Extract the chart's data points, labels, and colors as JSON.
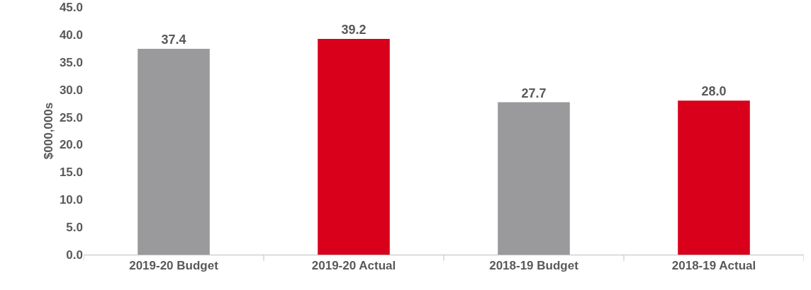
{
  "chart_data": {
    "type": "bar",
    "ylabel": "$000,000s",
    "categories": [
      "2019-20 Budget",
      "2019-20 Actual",
      "2018-19 Budget",
      "2018-19 Actual"
    ],
    "values": [
      37.4,
      39.2,
      27.7,
      28.0
    ],
    "colors": [
      "#9a9a9c",
      "#d9001b",
      "#9a9a9c",
      "#d9001b"
    ],
    "value_labels": [
      "37.4",
      "39.2",
      "27.7",
      "28.0"
    ],
    "ylim": [
      0,
      45
    ],
    "yticks": [
      {
        "value": 0,
        "label": "0.0"
      },
      {
        "value": 5,
        "label": "5.0"
      },
      {
        "value": 10,
        "label": "10.0"
      },
      {
        "value": 15,
        "label": "15.0"
      },
      {
        "value": 20,
        "label": "20.0"
      },
      {
        "value": 25,
        "label": "25.0"
      },
      {
        "value": 30,
        "label": "30.0"
      },
      {
        "value": 35,
        "label": "35.0"
      },
      {
        "value": 40,
        "label": "40.0"
      },
      {
        "value": 45,
        "label": "45.0"
      }
    ],
    "grid": false,
    "legend": false
  }
}
